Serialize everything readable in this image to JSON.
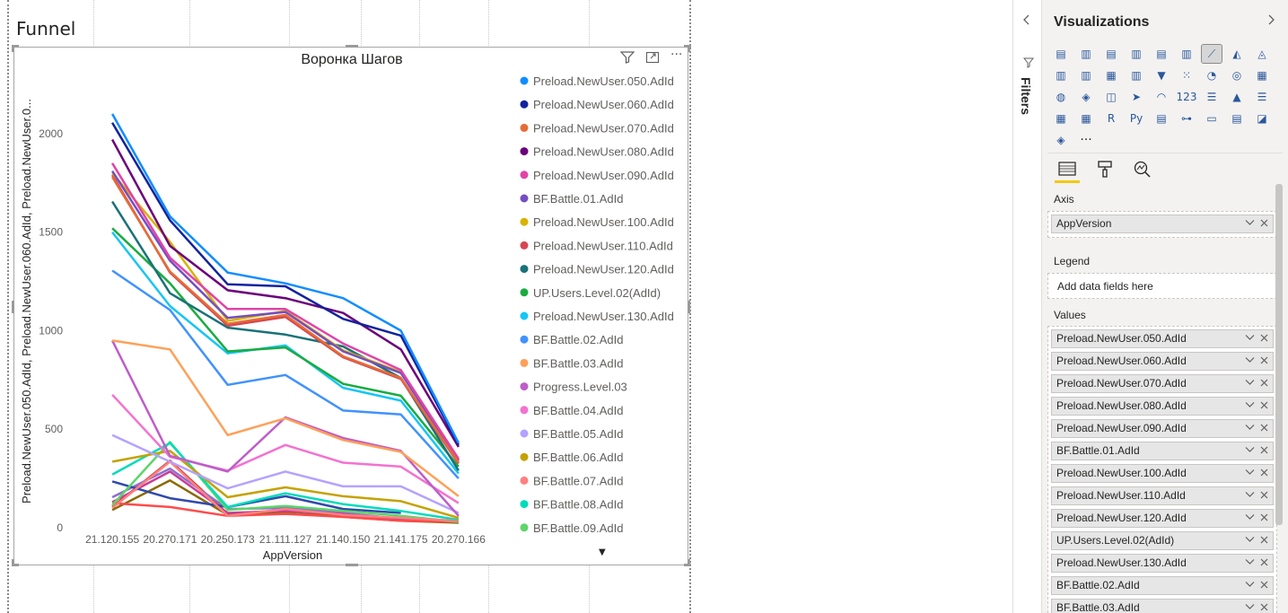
{
  "page": {
    "title": "Funnel"
  },
  "visual_header": {
    "filter_icon": "funnel-icon",
    "focus_icon": "focus-mode-icon",
    "more_icon": "more-options-icon",
    "more_label": "···",
    "sort_arrow": "▼"
  },
  "chart_data": {
    "type": "line",
    "title": "Воронка Шагов",
    "xlabel": "AppVersion",
    "ylabel": "Preload.NewUser.050.AdId, Preload.NewUser.060.AdId, Preload.NewUser.0...",
    "ylim": [
      0,
      2300
    ],
    "yticks": [
      0,
      500,
      1000,
      1500,
      2000
    ],
    "legend_position": "right",
    "categories": [
      "21.120.155",
      "20.270.171",
      "20.250.173",
      "21.111.127",
      "21.140.150",
      "21.141.175",
      "20.270.166"
    ],
    "series": [
      {
        "name": "Preload.NewUser.050.AdId",
        "color": "#118DFF",
        "values": [
          2100,
          1580,
          1295,
          1240,
          1165,
          1000,
          430
        ]
      },
      {
        "name": "Preload.NewUser.060.AdId",
        "color": "#12239E",
        "values": [
          2055,
          1560,
          1235,
          1225,
          1060,
          975,
          420
        ]
      },
      {
        "name": "Preload.NewUser.070.AdId",
        "color": "#E66C37",
        "values": [
          1780,
          1300,
          1035,
          1080,
          870,
          760,
          330
        ]
      },
      {
        "name": "Preload.NewUser.080.AdId",
        "color": "#6B007B",
        "values": [
          1970,
          1430,
          1205,
          1165,
          1090,
          905,
          410
        ]
      },
      {
        "name": "Preload.NewUser.090.AdId",
        "color": "#E044A7",
        "values": [
          1850,
          1370,
          1110,
          1110,
          935,
          800,
          350
        ]
      },
      {
        "name": "BF.Battle.01.AdId",
        "color": "#744EC2",
        "values": [
          1810,
          1355,
          1065,
          1095,
          895,
          785,
          340
        ]
      },
      {
        "name": "Preload.NewUser.100.AdId",
        "color": "#D9B300",
        "values": [
          1800,
          1450,
          1050,
          1100,
          900,
          790,
          345
        ]
      },
      {
        "name": "Preload.NewUser.110.AdId",
        "color": "#D64550",
        "values": [
          1790,
          1295,
          1025,
          1070,
          865,
          755,
          325
        ]
      },
      {
        "name": "Preload.NewUser.120.AdId",
        "color": "#197278",
        "values": [
          1655,
          1190,
          1015,
          980,
          920,
          760,
          290
        ]
      },
      {
        "name": "UP.Users.Level.02(AdId)",
        "color": "#1AAB40",
        "values": [
          1520,
          1240,
          895,
          915,
          730,
          670,
          310
        ]
      },
      {
        "name": "Preload.NewUser.130.AdId",
        "color": "#15C6F4",
        "values": [
          1500,
          1125,
          885,
          925,
          710,
          645,
          275
        ]
      },
      {
        "name": "BF.Battle.02.AdId",
        "color": "#4092FF",
        "values": [
          1305,
          1105,
          725,
          775,
          595,
          575,
          250
        ]
      },
      {
        "name": "BF.Battle.03.AdId",
        "color": "#FFA058",
        "values": [
          950,
          905,
          470,
          555,
          445,
          385,
          160
        ]
      },
      {
        "name": "Progress.Level.03",
        "color": "#BE5DC9",
        "values": [
          950,
          365,
          285,
          560,
          455,
          390,
          60
        ]
      },
      {
        "name": "BF.Battle.04.AdId",
        "color": "#F472D0",
        "values": [
          675,
          360,
          290,
          420,
          330,
          310,
          125
        ]
      },
      {
        "name": "BF.Battle.05.AdId",
        "color": "#B5A1FF",
        "values": [
          470,
          335,
          200,
          285,
          210,
          210,
          75
        ]
      },
      {
        "name": "BF.Battle.06.AdId",
        "color": "#C4A200",
        "values": [
          335,
          390,
          155,
          205,
          160,
          135,
          50
        ]
      },
      {
        "name": "BF.Battle.07.AdId",
        "color": "#FF8080",
        "values": [
          100,
          335,
          60,
          95,
          65,
          50,
          35
        ]
      },
      {
        "name": "BF.Battle.08.AdId",
        "color": "#00DBBC",
        "values": [
          270,
          430,
          105,
          175,
          120,
          85,
          40
        ]
      },
      {
        "name": "BF.Battle.09.AdId",
        "color": "#5BD667",
        "values": [
          115,
          435,
          90,
          110,
          85,
          60,
          30
        ]
      },
      {
        "color": "#3049AD",
        "values": [
          235,
          150,
          105,
          160,
          95,
          75,
          null
        ]
      },
      {
        "color": "#FF4B4B",
        "values": [
          125,
          105,
          60,
          70,
          55,
          35,
          30
        ]
      },
      {
        "color": "#C83D95",
        "values": [
          130,
          285,
          75,
          85,
          70,
          40,
          30
        ]
      },
      {
        "color": "#8D6FD1",
        "values": [
          155,
          300,
          95,
          100,
          75,
          45,
          30
        ]
      },
      {
        "color": "#8A6A00",
        "values": [
          90,
          240,
          65,
          75,
          55,
          35,
          25
        ]
      },
      {
        "color": "#D0402F",
        "values": [
          105,
          340,
          70,
          90,
          60,
          40,
          30
        ]
      }
    ]
  },
  "filters_pane": {
    "label": "Filters",
    "collapse_icon": "chevron-left-icon",
    "filter_icon": "funnel-icon"
  },
  "viz_pane": {
    "title": "Visualizations",
    "expand_icon": "chevron-right-icon",
    "gallery": [
      "stacked-bar",
      "stacked-column",
      "clustered-bar",
      "clustered-column",
      "100-bar",
      "100-column",
      "line",
      "area",
      "stacked-area",
      "line-column",
      "line-clustered",
      "ribbon",
      "waterfall",
      "funnel",
      "scatter",
      "pie",
      "donut",
      "treemap",
      "map",
      "filled-map",
      "shape-map",
      "azure-map",
      "gauge",
      "card",
      "multi-card",
      "kpi",
      "slicer",
      "table",
      "matrix",
      "r-visual",
      "python-visual",
      "key-influencers",
      "decomposition-tree",
      "qa",
      "smart-narrative",
      "paginated",
      "power-apps",
      "more"
    ],
    "gallery_glyphs": [
      "▤",
      "▥",
      "▤",
      "▥",
      "▤",
      "▥",
      "⟋",
      "◭",
      "◬",
      "▥",
      "▥",
      "▦",
      "▥",
      "▼",
      "⁙",
      "◔",
      "◎",
      "▦",
      "◍",
      "◈",
      "◫",
      "➤",
      "◠",
      "123",
      "☰",
      "▲",
      "☰",
      "▦",
      "▦",
      "R",
      "Py",
      "▤",
      "⊶",
      "▭",
      "▤",
      "◪",
      "◈",
      "···"
    ],
    "selected_index": 6,
    "tabs": [
      "fields-tab",
      "format-tab",
      "analytics-tab"
    ],
    "tab_glyphs": [
      "▤",
      "🖌",
      "⌕"
    ],
    "wells": {
      "axis": {
        "label": "Axis",
        "fields": [
          "AppVersion"
        ]
      },
      "legend": {
        "label": "Legend",
        "placeholder": "Add data fields here"
      },
      "values": {
        "label": "Values",
        "fields": [
          "Preload.NewUser.050.AdId",
          "Preload.NewUser.060.AdId",
          "Preload.NewUser.070.AdId",
          "Preload.NewUser.080.AdId",
          "Preload.NewUser.090.AdId",
          "BF.Battle.01.AdId",
          "Preload.NewUser.100.AdId",
          "Preload.NewUser.110.AdId",
          "Preload.NewUser.120.AdId",
          "UP.Users.Level.02(AdId)",
          "Preload.NewUser.130.AdId",
          "BF.Battle.02.AdId",
          "BF.Battle.03.AdId"
        ]
      }
    }
  }
}
